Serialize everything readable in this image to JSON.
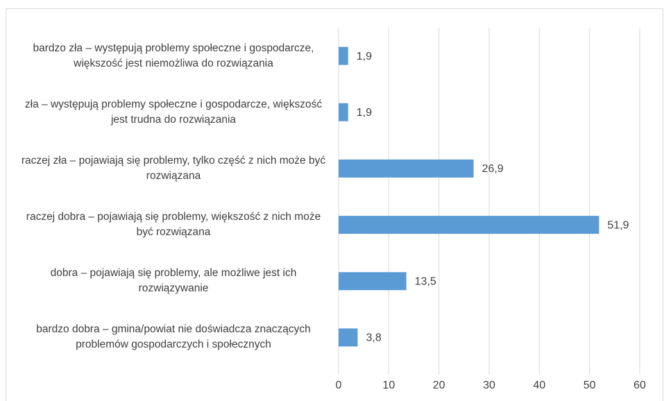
{
  "chart_data": {
    "type": "bar",
    "orientation": "horizontal",
    "categories": [
      "bardzo zła – występują problemy społeczne i gospodarcze, większość jest niemożliwa do rozwiązania",
      "zła – występują problemy społeczne i gospodarcze, większość jest trudna do rozwiązania",
      "raczej zła – pojawiają się problemy, tylko część z nich może być rozwiązana",
      "raczej dobra – pojawiają się problemy, większość z nich może być rozwiązana",
      "dobra – pojawiają się problemy, ale możliwe jest ich rozwiązywanie",
      "bardzo dobra – gmina/powiat nie doświadcza znaczących problemów gospodarczych i społecznych"
    ],
    "values": [
      1.9,
      1.9,
      26.9,
      51.9,
      13.5,
      3.8
    ],
    "value_labels": [
      "1,9",
      "1,9",
      "26,9",
      "51,9",
      "13,5",
      "3,8"
    ],
    "color": "#5b9bd5",
    "xlim": [
      0,
      60
    ],
    "xticks": [
      0,
      10,
      20,
      30,
      40,
      50,
      60
    ],
    "grid": true
  }
}
